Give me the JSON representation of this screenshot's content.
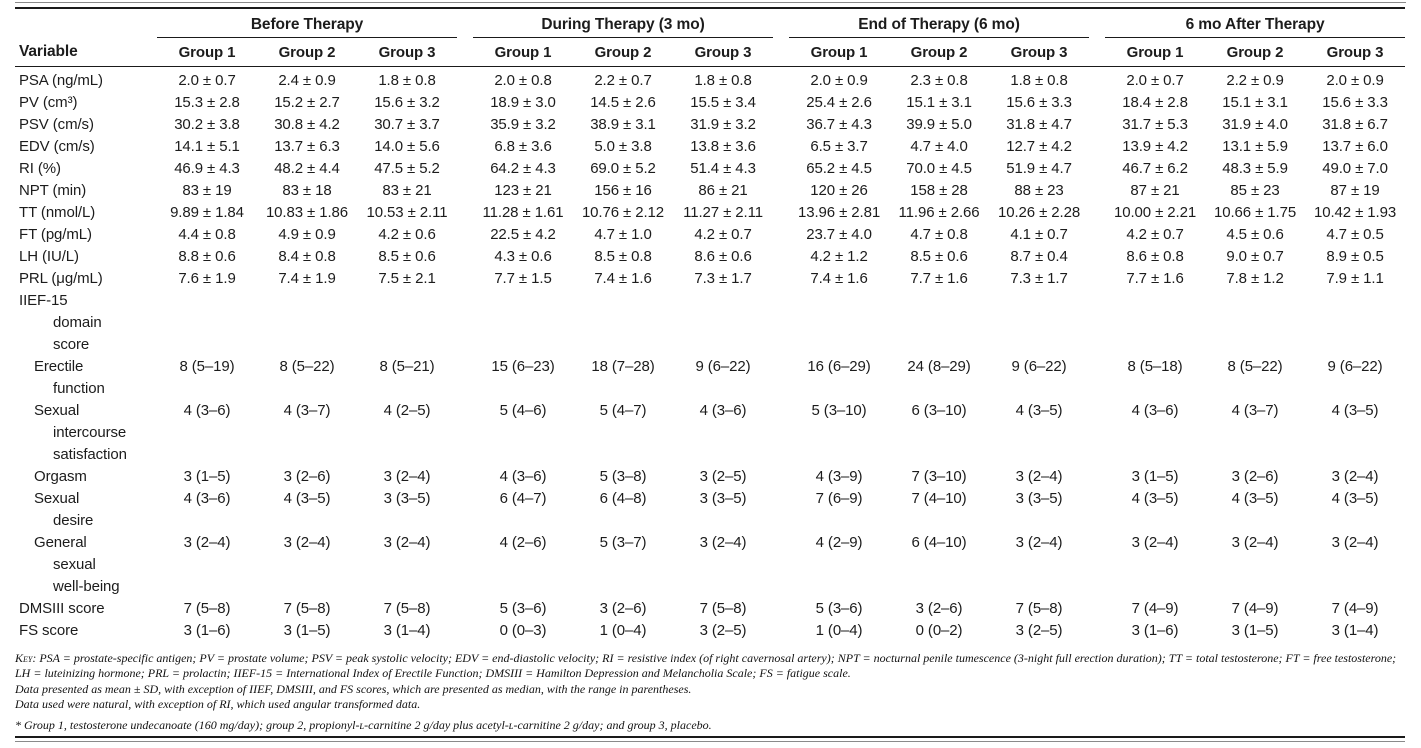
{
  "table": {
    "variable_header": "Variable",
    "span_headers": [
      "Before Therapy",
      "During Therapy (3 mo)",
      "End of Therapy (6 mo)",
      "6 mo After Therapy"
    ],
    "group_headers": [
      "Group 1",
      "Group 2",
      "Group 3"
    ],
    "rows": [
      {
        "label": "PSA (ng/mL)",
        "indent": 0,
        "values": [
          "2.0 ± 0.7",
          "2.4 ± 0.9",
          "1.8 ± 0.8",
          "2.0 ± 0.8",
          "2.2 ± 0.7",
          "1.8 ± 0.8",
          "2.0 ± 0.9",
          "2.3 ± 0.8",
          "1.8 ± 0.8",
          "2.0 ± 0.7",
          "2.2 ± 0.9",
          "2.0 ± 0.9"
        ]
      },
      {
        "label": "PV (cm³)",
        "indent": 0,
        "values": [
          "15.3 ± 2.8",
          "15.2 ± 2.7",
          "15.6 ± 3.2",
          "18.9 ± 3.0",
          "14.5 ± 2.6",
          "15.5 ± 3.4",
          "25.4 ± 2.6",
          "15.1 ± 3.1",
          "15.6 ± 3.3",
          "18.4 ± 2.8",
          "15.1 ± 3.1",
          "15.6 ± 3.3"
        ]
      },
      {
        "label": "PSV (cm/s)",
        "indent": 0,
        "values": [
          "30.2 ± 3.8",
          "30.8 ± 4.2",
          "30.7 ± 3.7",
          "35.9 ± 3.2",
          "38.9 ± 3.1",
          "31.9 ± 3.2",
          "36.7 ± 4.3",
          "39.9 ± 5.0",
          "31.8 ± 4.7",
          "31.7 ± 5.3",
          "31.9 ± 4.0",
          "31.8 ± 6.7"
        ]
      },
      {
        "label": "EDV (cm/s)",
        "indent": 0,
        "values": [
          "14.1 ± 5.1",
          "13.7 ± 6.3",
          "14.0 ± 5.6",
          "6.8 ± 3.6",
          "5.0 ± 3.8",
          "13.8 ± 3.6",
          "6.5 ± 3.7",
          "4.7 ± 4.0",
          "12.7 ± 4.2",
          "13.9 ± 4.2",
          "13.1 ± 5.9",
          "13.7 ± 6.0"
        ]
      },
      {
        "label": "RI (%)",
        "indent": 0,
        "values": [
          "46.9 ± 4.3",
          "48.2 ± 4.4",
          "47.5 ± 5.2",
          "64.2 ± 4.3",
          "69.0 ± 5.2",
          "51.4 ± 4.3",
          "65.2 ± 4.5",
          "70.0 ± 4.5",
          "51.9 ± 4.7",
          "46.7 ± 6.2",
          "48.3 ± 5.9",
          "49.0 ± 7.0"
        ]
      },
      {
        "label": "NPT (min)",
        "indent": 0,
        "values": [
          "83 ± 19",
          "83 ± 18",
          "83 ± 21",
          "123 ± 21",
          "156 ± 16",
          "86 ± 21",
          "120 ± 26",
          "158 ± 28",
          "88 ± 23",
          "87 ± 21",
          "85 ± 23",
          "87 ± 19"
        ]
      },
      {
        "label": "TT (nmol/L)",
        "indent": 0,
        "values": [
          "9.89 ± 1.84",
          "10.83 ± 1.86",
          "10.53 ± 2.11",
          "11.28 ± 1.61",
          "10.76 ± 2.12",
          "11.27 ± 2.11",
          "13.96 ± 2.81",
          "11.96 ± 2.66",
          "10.26 ± 2.28",
          "10.00 ± 2.21",
          "10.66 ± 1.75",
          "10.42 ± 1.93"
        ]
      },
      {
        "label": "FT (pg/mL)",
        "indent": 0,
        "values": [
          "4.4 ± 0.8",
          "4.9 ± 0.9",
          "4.2 ± 0.6",
          "22.5 ± 4.2",
          "4.7 ± 1.0",
          "4.2 ± 0.7",
          "23.7 ± 4.0",
          "4.7 ± 0.8",
          "4.1 ± 0.7",
          "4.2 ± 0.7",
          "4.5 ± 0.6",
          "4.7 ± 0.5"
        ]
      },
      {
        "label": "LH (IU/L)",
        "indent": 0,
        "values": [
          "8.8 ± 0.6",
          "8.4 ± 0.8",
          "8.5 ± 0.6",
          "4.3 ± 0.6",
          "8.5 ± 0.8",
          "8.6 ± 0.6",
          "4.2 ± 1.2",
          "8.5 ± 0.6",
          "8.7 ± 0.4",
          "8.6 ± 0.8",
          "9.0 ± 0.7",
          "8.9 ± 0.5"
        ]
      },
      {
        "label": "PRL (μg/mL)",
        "indent": 0,
        "values": [
          "7.6 ± 1.9",
          "7.4 ± 1.9",
          "7.5 ± 2.1",
          "7.7 ± 1.5",
          "7.4 ± 1.6",
          "7.3 ± 1.7",
          "7.4 ± 1.6",
          "7.7 ± 1.6",
          "7.3 ± 1.7",
          "7.7 ± 1.6",
          "7.8 ± 1.2",
          "7.9 ± 1.1"
        ]
      },
      {
        "label": "IIEF-15\ndomain\nscore",
        "indent": 0,
        "values": [
          "",
          "",
          "",
          "",
          "",
          "",
          "",
          "",
          "",
          "",
          "",
          ""
        ]
      },
      {
        "label": "Erectile\nfunction",
        "indent": 1,
        "values": [
          "8 (5–19)",
          "8 (5–22)",
          "8 (5–21)",
          "15 (6–23)",
          "18 (7–28)",
          "9 (6–22)",
          "16 (6–29)",
          "24 (8–29)",
          "9 (6–22)",
          "8 (5–18)",
          "8 (5–22)",
          "9 (6–22)"
        ]
      },
      {
        "label": "Sexual\nintercourse\nsatisfaction",
        "indent": 1,
        "values": [
          "4 (3–6)",
          "4 (3–7)",
          "4 (2–5)",
          "5 (4–6)",
          "5 (4–7)",
          "4 (3–6)",
          "5 (3–10)",
          "6 (3–10)",
          "4 (3–5)",
          "4 (3–6)",
          "4 (3–7)",
          "4 (3–5)"
        ]
      },
      {
        "label": "Orgasm",
        "indent": 1,
        "values": [
          "3 (1–5)",
          "3 (2–6)",
          "3 (2–4)",
          "4 (3–6)",
          "5 (3–8)",
          "3 (2–5)",
          "4 (3–9)",
          "7 (3–10)",
          "3 (2–4)",
          "3 (1–5)",
          "3 (2–6)",
          "3 (2–4)"
        ]
      },
      {
        "label": "Sexual\ndesire",
        "indent": 1,
        "values": [
          "4 (3–6)",
          "4 (3–5)",
          "3 (3–5)",
          "6 (4–7)",
          "6 (4–8)",
          "3 (3–5)",
          "7 (6–9)",
          "7 (4–10)",
          "3 (3–5)",
          "4 (3–5)",
          "4 (3–5)",
          "4 (3–5)"
        ]
      },
      {
        "label": "General\nsexual\nwell-being",
        "indent": 1,
        "values": [
          "3 (2–4)",
          "3 (2–4)",
          "3 (2–4)",
          "4 (2–6)",
          "5 (3–7)",
          "3 (2–4)",
          "4 (2–9)",
          "6 (4–10)",
          "3 (2–4)",
          "3 (2–4)",
          "3 (2–4)",
          "3 (2–4)"
        ]
      },
      {
        "label": "DMSIII score",
        "indent": 0,
        "values": [
          "7 (5–8)",
          "7 (5–8)",
          "7 (5–8)",
          "5 (3–6)",
          "3 (2–6)",
          "7 (5–8)",
          "5 (3–6)",
          "3 (2–6)",
          "7 (5–8)",
          "7 (4–9)",
          "7 (4–9)",
          "7 (4–9)"
        ]
      },
      {
        "label": "FS score",
        "indent": 0,
        "values": [
          "3 (1–6)",
          "3 (1–5)",
          "3 (1–4)",
          "0 (0–3)",
          "1 (0–4)",
          "3 (2–5)",
          "1 (0–4)",
          "0 (0–2)",
          "3 (2–5)",
          "3 (1–6)",
          "3 (1–5)",
          "3 (1–4)"
        ]
      }
    ]
  },
  "footnotes": {
    "key_label": "Key:",
    "key_text": "PSA = prostate-specific antigen; PV = prostate volume; PSV = peak systolic velocity; EDV = end-diastolic velocity; RI = resistive index (of right cavernosal artery); NPT = nocturnal penile tumescence (3-night full erection duration); TT = total testosterone; FT = free testosterone; LH = luteinizing hormone; PRL = prolactin; IIEF-15 = International Index of Erectile Function; DMSIII = Hamilton Depression and Melancholia Scale; FS = fatigue scale.",
    "line2": "Data presented as mean ± SD, with exception of IIEF, DMSIII, and FS scores, which are presented as median, with the range in parentheses.",
    "line3": "Data used were natural, with exception of RI, which used angular transformed data.",
    "line4": "* Group 1, testosterone undecanoate (160 mg/day); group 2, propionyl-ʟ-carnitine 2 g/day plus acetyl-ʟ-carnitine 2 g/day; and group 3, placebo."
  }
}
